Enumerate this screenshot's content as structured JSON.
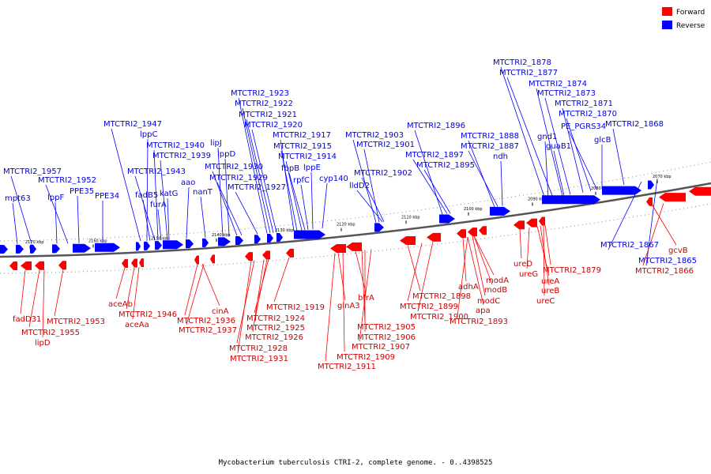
{
  "caption": "Mycobacterium tuberculosis CTRI-2, complete genome. - 0..4398525",
  "legend": [
    {
      "label": "Forward",
      "color": "#ff0000"
    },
    {
      "label": "Reverse",
      "color": "#0000ff"
    }
  ],
  "colors": {
    "forward": "#ff0000",
    "reverse": "#0000ff",
    "forward_label": "#cc0000",
    "reverse_label": "#0000dd",
    "backbone": "#777777"
  },
  "tick_labels": [
    "2170 kbp",
    "2160 kbp",
    "2150 kbp",
    "2140 kbp",
    "2130 kbp",
    "2120 kbp",
    "2110 kbp",
    "2100 kbp",
    "2090 kbp",
    "2080 kbp",
    "2070 kbp"
  ],
  "reverse_labels": [
    "MTCTRI2_1957",
    "mpt63",
    "MTCTRI2_1952",
    "lppF",
    "PPE35",
    "PPE34",
    "MTCTRI2_1947",
    "lppC",
    "MTCTRI2_1940",
    "MTCTRI2_1939",
    "MTCTRI2_1943",
    "fadB5",
    "furA",
    "katG",
    "aao",
    "nanT",
    "lipJ",
    "lppD",
    "MTCTRI2_1930",
    "MTCTRI2_1929",
    "MTCTRI2_1927",
    "MTCTRI2_1923",
    "MTCTRI2_1922",
    "MTCTRI2_1921",
    "MTCTRI2_1920",
    "MTCTRI2_1917",
    "MTCTRI2_1915",
    "MTCTRI2_1914",
    "fbpB",
    "rpfC",
    "lppE",
    "cyp140",
    "MTCTRI2_1903",
    "MTCTRI2_1901",
    "MTCTRI2_1902",
    "lldD2",
    "MTCTRI2_1896",
    "MTCTRI2_1897",
    "MTCTRI2_1895",
    "MTCTRI2_1888",
    "MTCTRI2_1887",
    "ndh",
    "MTCTRI2_1878",
    "MTCTRI2_1877",
    "MTCTRI2_1874",
    "MTCTRI2_1873",
    "MTCTRI2_1871",
    "MTCTRI2_1870",
    "PE_PGRS34",
    "MTCTRI2_1868",
    "gnd1",
    "guaB1",
    "glcB",
    "MTCTRI2_1867",
    "MTCTRI2_1865"
  ],
  "forward_labels": [
    "fadD31",
    "MTCTRI2_1955",
    "lipD",
    "MTCTRI2_1953",
    "aceAb",
    "MTCTRI2_1946",
    "aceAa",
    "cinA",
    "MTCTRI2_1936",
    "MTCTRI2_1937",
    "MTCTRI2_1919",
    "MTCTRI2_1924",
    "MTCTRI2_1925",
    "MTCTRI2_1926",
    "MTCTRI2_1928",
    "MTCTRI2_1931",
    "glnA3",
    "bfrA",
    "MTCTRI2_1905",
    "MTCTRI2_1906",
    "MTCTRI2_1907",
    "MTCTRI2_1909",
    "MTCTRI2_1911",
    "MTCTRI2_1898",
    "MTCTRI2_1899",
    "MTCTRI2_1900",
    "adhA",
    "modA",
    "modB",
    "modC",
    "apa",
    "MTCTRI2_1893",
    "ureD",
    "ureG",
    "ureA",
    "ureB",
    "ureC",
    "MTCTRI2_1879",
    "gcvB",
    "MTCTRI2_1866"
  ]
}
